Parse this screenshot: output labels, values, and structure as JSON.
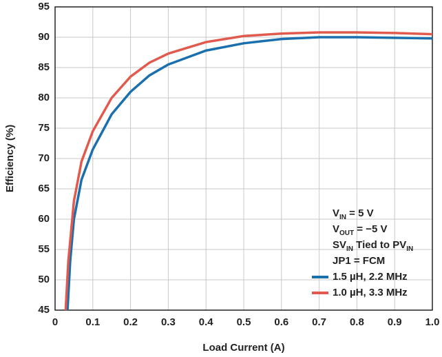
{
  "chart_data": {
    "type": "line",
    "xlabel": "Load Current (A)",
    "ylabel": "Efficiency (%)",
    "xlim": [
      0,
      1
    ],
    "xticks": [
      0,
      0.1,
      0.2,
      0.3,
      0.4,
      0.5,
      0.6,
      0.7,
      0.8,
      0.9,
      {
        "value": 1,
        "label": "1.0"
      }
    ],
    "ylim": [
      45,
      95
    ],
    "yticks": [
      45,
      50,
      55,
      60,
      65,
      70,
      75,
      80,
      85,
      90,
      95
    ],
    "grid": true,
    "legend": "lower right",
    "annotations": [
      [
        "V",
        "IN",
        " = 5 V"
      ],
      [
        "V",
        "OUT",
        " = −5 V"
      ],
      [
        "SV",
        "IN",
        " Tied to PV",
        "IN"
      ],
      [
        "JP1 = FCM"
      ]
    ],
    "series": [
      {
        "name": "1.5 µH, 2.2 MHz",
        "color": "#1a6fad",
        "x": [
          0.033,
          0.04,
          0.05,
          0.07,
          0.1,
          0.15,
          0.2,
          0.25,
          0.3,
          0.4,
          0.5,
          0.6,
          0.7,
          0.8,
          0.9,
          1.0
        ],
        "values": [
          45,
          53,
          60,
          66.5,
          71.5,
          77.3,
          81,
          83.7,
          85.5,
          87.8,
          89,
          89.7,
          90,
          90,
          89.9,
          89.8
        ]
      },
      {
        "name": "1.0 µH, 3.3 MHz",
        "color": "#e05a4e",
        "x": [
          0.028,
          0.035,
          0.05,
          0.07,
          0.1,
          0.15,
          0.2,
          0.25,
          0.3,
          0.4,
          0.5,
          0.6,
          0.7,
          0.8,
          0.9,
          1.0
        ],
        "values": [
          45,
          53,
          63,
          69.5,
          74.5,
          80,
          83.5,
          85.8,
          87.3,
          89.2,
          90.2,
          90.6,
          90.8,
          90.8,
          90.7,
          90.5
        ]
      }
    ]
  }
}
